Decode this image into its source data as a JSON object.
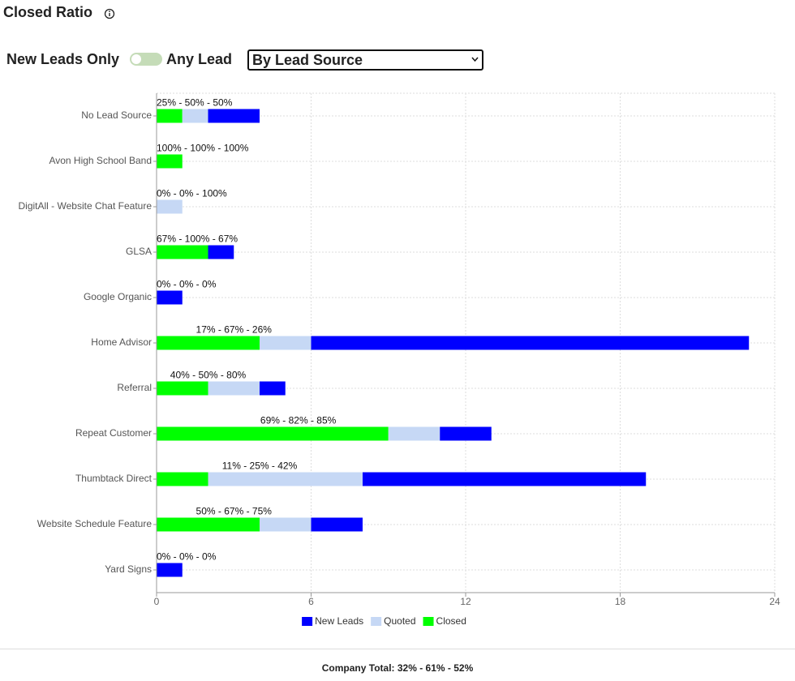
{
  "header": {
    "title": "Closed Ratio"
  },
  "controls": {
    "toggle_left": "New Leads Only",
    "toggle_right": "Any Lead",
    "select": "By Lead Source"
  },
  "chart_data": {
    "type": "bar",
    "orientation": "horizontal",
    "stacked": true,
    "categories": [
      "No Lead Source",
      "Avon High School Band",
      "DigitAll - Website Chat Feature",
      "GLSA",
      "Google Organic",
      "Home Advisor",
      "Referral",
      "Repeat Customer",
      "Thumbtack Direct",
      "Website Schedule Feature",
      "Yard Signs"
    ],
    "series": [
      {
        "name": "New Leads",
        "color": "#0000ff",
        "values": [
          2,
          0,
          0,
          1,
          1,
          17,
          1,
          2,
          11,
          2,
          1
        ]
      },
      {
        "name": "Quoted",
        "color": "#c6d8f5",
        "values": [
          1,
          0,
          1,
          0,
          0,
          2,
          2,
          2,
          6,
          2,
          0
        ]
      },
      {
        "name": "Closed",
        "color": "#00ff00",
        "values": [
          1,
          1,
          0,
          2,
          0,
          4,
          2,
          9,
          2,
          4,
          0
        ]
      }
    ],
    "annotations": [
      "25% - 50% - 50%",
      "100% - 100% - 100%",
      "0% - 0% - 100%",
      "67% - 100% - 67%",
      "0% - 0% - 0%",
      "17% - 67% - 26%",
      "40% - 50% - 80%",
      "69% - 82% - 85%",
      "11% - 25% - 42%",
      "50% - 67% - 75%",
      "0% - 0% - 0%"
    ],
    "xlim": [
      0,
      24
    ],
    "xticks": [
      0,
      6,
      12,
      18,
      24
    ],
    "grid": true,
    "legend": "bottom"
  },
  "footer": {
    "company_total": "Company Total: 32% - 61% - 52%"
  }
}
